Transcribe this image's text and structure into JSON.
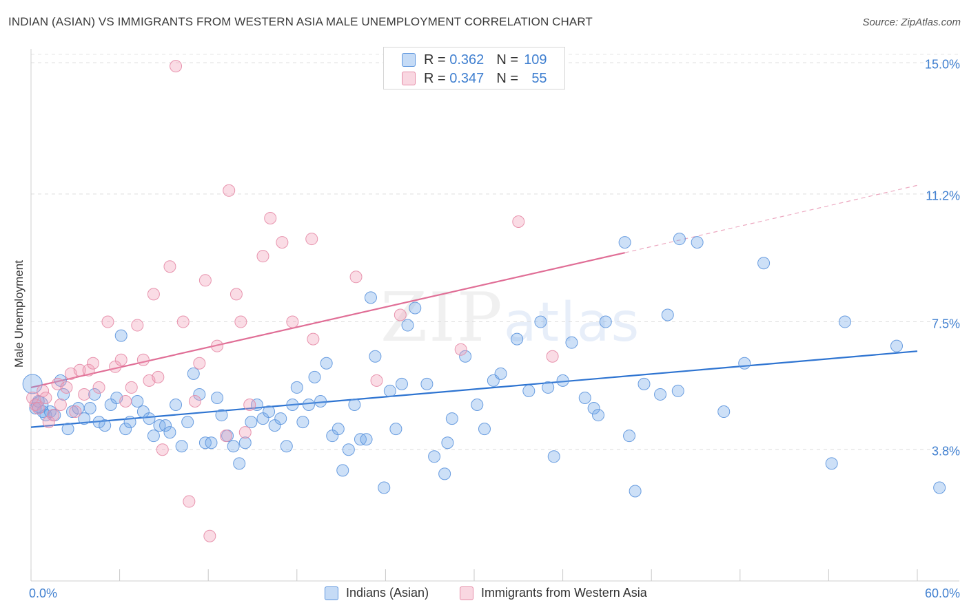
{
  "header": {
    "title": "INDIAN (ASIAN) VS IMMIGRANTS FROM WESTERN ASIA MALE UNEMPLOYMENT CORRELATION CHART",
    "source": "Source: ZipAtlas.com"
  },
  "watermark": {
    "zip": "ZIP",
    "atlas": "atlas"
  },
  "legend": {
    "rows": [
      {
        "r_label": "R =",
        "r_value": "0.362",
        "n_label": "N =",
        "n_value": "109",
        "color": "#6fa6e8"
      },
      {
        "r_label": "R =",
        "r_value": "0.347",
        "n_label": "N =",
        "n_value": "55",
        "color": "#f09ab4"
      }
    ]
  },
  "chart_data": {
    "type": "scatter",
    "title": "INDIAN (ASIAN) VS IMMIGRANTS FROM WESTERN ASIA MALE UNEMPLOYMENT CORRELATION CHART",
    "xlabel": "",
    "ylabel": "Male Unemployment",
    "xlim": [
      0,
      60
    ],
    "ylim": [
      0,
      15.4
    ],
    "x_tick_labels": [
      "0.0%",
      "60.0%"
    ],
    "y_ticks": [
      3.8,
      7.5,
      11.2,
      15.0
    ],
    "y_tick_labels": [
      "3.8%",
      "7.5%",
      "11.2%",
      "15.0%"
    ],
    "grid": true,
    "series": [
      {
        "name": "Indians (Asian)",
        "color": "#6fa6e8",
        "stroke": "#5b94dd",
        "trend": {
          "x0": 0,
          "y0": 4.45,
          "x1": 60,
          "y1": 6.65,
          "color": "#2e74d1",
          "dashed_to": null
        },
        "points": [
          [
            0.1,
            5.7
          ],
          [
            0.3,
            5.0
          ],
          [
            0.5,
            5.2
          ],
          [
            0.8,
            4.9
          ],
          [
            1.0,
            4.8
          ],
          [
            1.3,
            4.9
          ],
          [
            1.6,
            4.8
          ],
          [
            2.0,
            5.8
          ],
          [
            2.2,
            5.4
          ],
          [
            2.5,
            4.4
          ],
          [
            2.8,
            4.9
          ],
          [
            3.2,
            5.0
          ],
          [
            3.6,
            4.7
          ],
          [
            4.0,
            5.0
          ],
          [
            4.3,
            5.4
          ],
          [
            4.6,
            4.6
          ],
          [
            5.0,
            4.5
          ],
          [
            5.4,
            5.1
          ],
          [
            5.8,
            5.3
          ],
          [
            6.1,
            7.1
          ],
          [
            6.4,
            4.4
          ],
          [
            6.7,
            4.6
          ],
          [
            7.2,
            5.2
          ],
          [
            7.6,
            4.9
          ],
          [
            8.0,
            4.7
          ],
          [
            8.3,
            4.2
          ],
          [
            8.7,
            4.5
          ],
          [
            9.1,
            4.5
          ],
          [
            9.4,
            4.3
          ],
          [
            9.8,
            5.1
          ],
          [
            10.2,
            3.9
          ],
          [
            10.6,
            4.6
          ],
          [
            11.0,
            6.0
          ],
          [
            11.4,
            5.4
          ],
          [
            11.8,
            4.0
          ],
          [
            12.2,
            4.0
          ],
          [
            12.6,
            5.3
          ],
          [
            12.9,
            4.8
          ],
          [
            13.3,
            4.2
          ],
          [
            13.7,
            3.9
          ],
          [
            14.1,
            3.4
          ],
          [
            14.5,
            4.0
          ],
          [
            14.9,
            4.6
          ],
          [
            15.3,
            5.1
          ],
          [
            15.7,
            4.7
          ],
          [
            16.1,
            4.9
          ],
          [
            16.5,
            4.5
          ],
          [
            16.9,
            4.7
          ],
          [
            17.3,
            3.9
          ],
          [
            17.7,
            5.1
          ],
          [
            18.0,
            5.6
          ],
          [
            18.4,
            4.6
          ],
          [
            18.8,
            5.1
          ],
          [
            19.2,
            5.9
          ],
          [
            19.6,
            5.2
          ],
          [
            20.0,
            6.3
          ],
          [
            20.4,
            4.2
          ],
          [
            20.8,
            4.4
          ],
          [
            21.1,
            3.2
          ],
          [
            21.5,
            3.8
          ],
          [
            21.9,
            5.1
          ],
          [
            22.3,
            4.1
          ],
          [
            22.7,
            4.1
          ],
          [
            23.0,
            8.2
          ],
          [
            23.3,
            6.5
          ],
          [
            23.9,
            2.7
          ],
          [
            24.3,
            5.5
          ],
          [
            24.7,
            4.4
          ],
          [
            25.1,
            5.7
          ],
          [
            25.5,
            7.4
          ],
          [
            26.0,
            7.9
          ],
          [
            26.8,
            5.7
          ],
          [
            27.3,
            3.6
          ],
          [
            28.0,
            3.1
          ],
          [
            28.2,
            4.0
          ],
          [
            28.5,
            4.7
          ],
          [
            29.4,
            6.5
          ],
          [
            30.2,
            5.1
          ],
          [
            30.7,
            4.4
          ],
          [
            31.3,
            5.8
          ],
          [
            31.8,
            6.0
          ],
          [
            32.9,
            7.0
          ],
          [
            33.7,
            5.5
          ],
          [
            34.5,
            7.5
          ],
          [
            35.0,
            5.6
          ],
          [
            35.4,
            3.6
          ],
          [
            36.0,
            5.8
          ],
          [
            36.6,
            6.9
          ],
          [
            37.5,
            5.3
          ],
          [
            38.1,
            5.0
          ],
          [
            38.4,
            4.8
          ],
          [
            38.9,
            7.5
          ],
          [
            40.2,
            9.8
          ],
          [
            40.5,
            4.2
          ],
          [
            40.9,
            2.6
          ],
          [
            41.5,
            5.7
          ],
          [
            42.6,
            5.4
          ],
          [
            43.1,
            7.7
          ],
          [
            43.8,
            5.5
          ],
          [
            43.9,
            9.9
          ],
          [
            45.1,
            9.8
          ],
          [
            46.9,
            4.9
          ],
          [
            48.3,
            6.3
          ],
          [
            49.6,
            9.2
          ],
          [
            54.2,
            3.4
          ],
          [
            55.1,
            7.5
          ],
          [
            58.6,
            6.8
          ],
          [
            61.5,
            2.7
          ],
          [
            0.6,
            5.1
          ]
        ]
      },
      {
        "name": "Immigrants from Western Asia",
        "color": "#f09ab4",
        "stroke": "#e58aa6",
        "trend": {
          "x0": 0,
          "y0": 5.6,
          "x1": 40.2,
          "y1": 9.5,
          "color": "#e06e96",
          "dashed_to": {
            "x": 60,
            "y": 11.45
          }
        },
        "points": [
          [
            0.1,
            5.3
          ],
          [
            0.3,
            5.1
          ],
          [
            0.5,
            5.0
          ],
          [
            0.8,
            5.5
          ],
          [
            1.0,
            5.3
          ],
          [
            1.2,
            4.6
          ],
          [
            1.5,
            4.8
          ],
          [
            1.8,
            5.7
          ],
          [
            2.0,
            5.1
          ],
          [
            2.4,
            5.6
          ],
          [
            2.7,
            6.0
          ],
          [
            3.0,
            4.9
          ],
          [
            3.3,
            6.1
          ],
          [
            3.6,
            5.4
          ],
          [
            3.9,
            6.1
          ],
          [
            4.2,
            6.3
          ],
          [
            4.6,
            5.6
          ],
          [
            5.2,
            7.5
          ],
          [
            5.7,
            6.2
          ],
          [
            6.1,
            6.4
          ],
          [
            6.4,
            5.2
          ],
          [
            6.8,
            5.6
          ],
          [
            7.2,
            7.4
          ],
          [
            7.6,
            6.4
          ],
          [
            8.0,
            5.8
          ],
          [
            8.3,
            8.3
          ],
          [
            8.6,
            5.9
          ],
          [
            8.9,
            3.8
          ],
          [
            9.4,
            9.1
          ],
          [
            9.8,
            14.9
          ],
          [
            10.3,
            7.5
          ],
          [
            10.7,
            2.3
          ],
          [
            11.1,
            5.2
          ],
          [
            11.4,
            6.3
          ],
          [
            11.8,
            8.7
          ],
          [
            12.1,
            1.3
          ],
          [
            12.6,
            6.8
          ],
          [
            13.2,
            4.2
          ],
          [
            13.4,
            11.3
          ],
          [
            13.9,
            8.3
          ],
          [
            14.2,
            7.5
          ],
          [
            14.5,
            4.3
          ],
          [
            14.8,
            5.1
          ],
          [
            15.7,
            9.4
          ],
          [
            16.2,
            10.5
          ],
          [
            17.0,
            9.8
          ],
          [
            17.7,
            7.5
          ],
          [
            19.0,
            9.9
          ],
          [
            19.1,
            7.0
          ],
          [
            22.0,
            8.8
          ],
          [
            23.4,
            5.8
          ],
          [
            25.0,
            7.7
          ],
          [
            29.1,
            6.7
          ],
          [
            33.0,
            10.4
          ],
          [
            35.3,
            6.5
          ]
        ]
      }
    ]
  }
}
